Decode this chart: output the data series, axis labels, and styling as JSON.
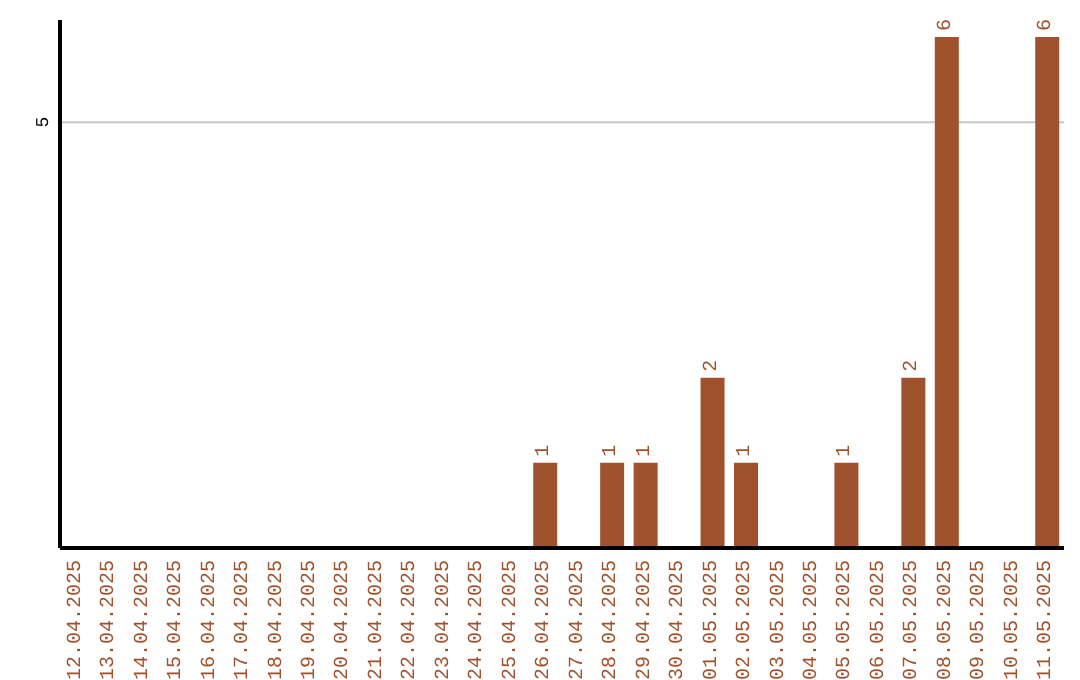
{
  "chart_data": {
    "type": "bar",
    "categories": [
      "12.04.2025",
      "13.04.2025",
      "14.04.2025",
      "15.04.2025",
      "16.04.2025",
      "17.04.2025",
      "18.04.2025",
      "19.04.2025",
      "20.04.2025",
      "21.04.2025",
      "22.04.2025",
      "23.04.2025",
      "24.04.2025",
      "25.04.2025",
      "26.04.2025",
      "27.04.2025",
      "28.04.2025",
      "29.04.2025",
      "30.04.2025",
      "01.05.2025",
      "02.05.2025",
      "03.05.2025",
      "04.05.2025",
      "05.05.2025",
      "06.05.2025",
      "07.05.2025",
      "08.05.2025",
      "09.05.2025",
      "10.05.2025",
      "11.05.2025"
    ],
    "values": [
      null,
      null,
      null,
      null,
      null,
      null,
      null,
      null,
      null,
      null,
      null,
      null,
      null,
      null,
      1,
      null,
      1,
      1,
      null,
      2,
      1,
      null,
      null,
      1,
      null,
      2,
      6,
      null,
      null,
      6
    ],
    "color": "#a0522d",
    "ylim": [
      0,
      6.2
    ],
    "yticks": [
      5
    ],
    "grid": "y",
    "data_labels": true
  }
}
